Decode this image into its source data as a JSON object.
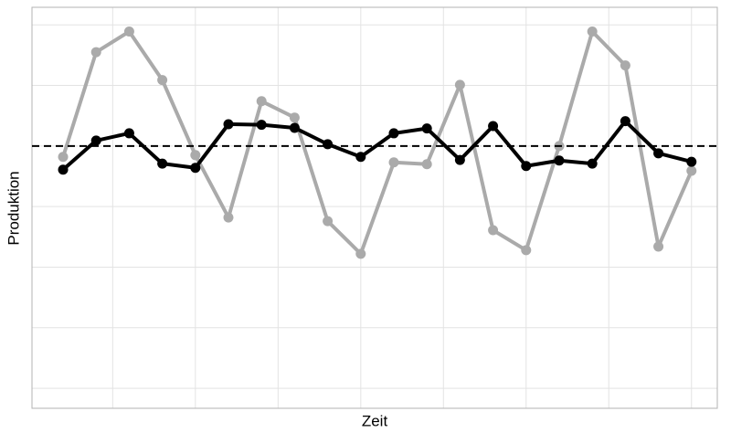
{
  "chart_data": {
    "type": "line",
    "x_label": "Zeit",
    "y_label": "Produktion",
    "x": [
      1,
      2,
      3,
      4,
      5,
      6,
      7,
      8,
      9,
      10,
      11,
      12,
      13,
      14,
      15,
      16,
      17,
      18,
      19,
      20
    ],
    "series": [
      {
        "color": "#aaaaaa",
        "values": [
          -0.18,
          1.55,
          1.89,
          1.09,
          -0.15,
          -1.18,
          0.74,
          0.47,
          -1.24,
          -1.78,
          -0.27,
          -0.3,
          1.01,
          -1.39,
          -1.72,
          0,
          1.89,
          1.33,
          -1.66,
          -0.41
        ]
      },
      {
        "color": "#000000",
        "values": [
          -0.39,
          0.09,
          0.21,
          -0.29,
          -0.36,
          0.36,
          0.35,
          0.3,
          0.03,
          -0.18,
          0.21,
          0.29,
          -0.23,
          0.33,
          -0.33,
          -0.24,
          -0.29,
          0.41,
          -0.12,
          -0.26
        ]
      }
    ],
    "hline": 0,
    "xlim": [
      0.06,
      20.78
    ],
    "ylim": [
      -4.33,
      2.29
    ],
    "xticks": [
      2.5,
      5,
      7.5,
      10,
      12.5,
      15,
      17.5,
      20
    ],
    "yticks": [
      -4,
      -3,
      -2,
      -1,
      0,
      1,
      2
    ],
    "grid": true
  }
}
